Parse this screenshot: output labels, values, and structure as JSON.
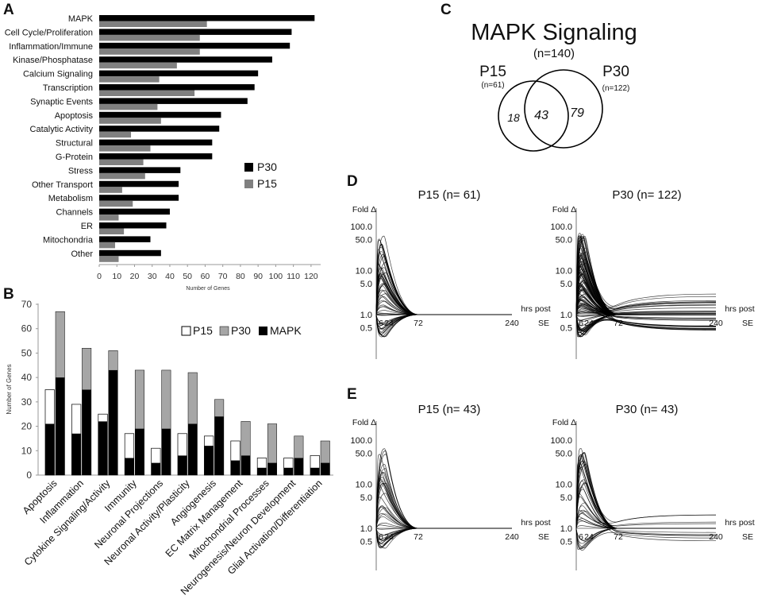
{
  "panels": {
    "a": "A",
    "b": "B",
    "c": "C",
    "d": "D",
    "e": "E"
  },
  "chart_data": [
    {
      "id": "A",
      "type": "bar",
      "orientation": "horizontal",
      "categories": [
        "MAPK",
        "Cell Cycle/Proliferation",
        "Inflammation/Immune",
        "Kinase/Phosphatase",
        "Calcium Signaling",
        "Transcription",
        "Synaptic Events",
        "Apoptosis",
        "Catalytic Activity",
        "Structural",
        "G-Protein",
        "Stress",
        "Other Transport",
        "Metabolism",
        "Channels",
        "ER",
        "Mitochondria",
        "Other"
      ],
      "series": [
        {
          "name": "P30",
          "color": "#000000",
          "values": [
            122,
            109,
            108,
            98,
            90,
            88,
            84,
            69,
            68,
            64,
            64,
            46,
            45,
            45,
            40,
            38,
            29,
            35
          ]
        },
        {
          "name": "P15",
          "color": "#808080",
          "values": [
            61,
            57,
            57,
            44,
            34,
            54,
            33,
            35,
            18,
            29,
            25,
            26,
            13,
            19,
            11,
            14,
            9,
            11
          ]
        }
      ],
      "xlim": [
        0,
        125
      ],
      "xticks": [
        "0",
        "10",
        "20",
        "30",
        "40",
        "50",
        "60",
        "70",
        "80",
        "90",
        "100",
        "110",
        "120"
      ],
      "xlabel": "Number of Genes",
      "legend": [
        "P30",
        "P15"
      ]
    },
    {
      "id": "B",
      "type": "bar",
      "categories": [
        "Apoptosis",
        "Inflammation",
        "Cytokine Signaling/Activity",
        "Immunity",
        "Neuronal Projections",
        "Neuronal Activity/Plasticity",
        "Angiogenesis",
        "EC Matrix Management",
        "Mitochondrial Processes",
        "Neurogenesis/Neuron Development",
        "Glial Activation/Differentiation"
      ],
      "series": [
        {
          "name": "P15",
          "color": "#ffffff",
          "values": [
            35,
            29,
            25,
            17,
            11,
            17,
            16,
            14,
            7,
            7,
            8
          ]
        },
        {
          "name": "P15 MAPK",
          "color": "#000000",
          "values": [
            21,
            17,
            22,
            7,
            5,
            8,
            12,
            6,
            3,
            3,
            3
          ]
        },
        {
          "name": "P30",
          "color": "#a6a6a6",
          "values": [
            67,
            52,
            51,
            43,
            43,
            42,
            31,
            22,
            21,
            16,
            14
          ]
        },
        {
          "name": "P30 MAPK",
          "color": "#000000",
          "values": [
            40,
            35,
            43,
            19,
            19,
            21,
            24,
            8,
            5,
            7,
            5
          ]
        }
      ],
      "ylim": [
        0,
        70
      ],
      "yticks": [
        "0",
        "10",
        "20",
        "30",
        "40",
        "50",
        "60",
        "70"
      ],
      "ylabel": "Number of Genes",
      "legend": [
        "P15",
        "P30",
        "MAPK"
      ]
    },
    {
      "id": "C",
      "type": "venn",
      "title": "MAPK Signaling",
      "total": "(n=140)",
      "sets": [
        {
          "name": "P15",
          "n": "(n=61)"
        },
        {
          "name": "P30",
          "n": "(n=122)"
        }
      ],
      "regions": {
        "p15_only": "18",
        "both": "43",
        "p30_only": "79"
      }
    },
    {
      "id": "D",
      "type": "line",
      "ylabel": "Fold Δ",
      "yscale": "log",
      "yticks": [
        "100.0",
        "50.0",
        "10.0",
        "5.0",
        "1.0",
        "0.5"
      ],
      "xticks": [
        "6",
        "24",
        "72",
        "240"
      ],
      "xlabel_line1": "hrs post",
      "xlabel_line2": "SE",
      "subplots": [
        {
          "title": "P15 (n= 61)",
          "n": 61
        },
        {
          "title": "P30 (n= 122)",
          "n": 122
        }
      ]
    },
    {
      "id": "E",
      "type": "line",
      "ylabel": "Fold Δ",
      "yscale": "log",
      "yticks": [
        "100.0",
        "50.0",
        "10.0",
        "5.0",
        "1.0",
        "0.5"
      ],
      "xticks": [
        "6",
        "24",
        "72",
        "240"
      ],
      "xlabel_line1": "hrs post",
      "xlabel_line2": "SE",
      "subplots": [
        {
          "title": "P15 (n= 43)",
          "n": 43
        },
        {
          "title": "P30 (n= 43)",
          "n": 43
        }
      ]
    }
  ]
}
